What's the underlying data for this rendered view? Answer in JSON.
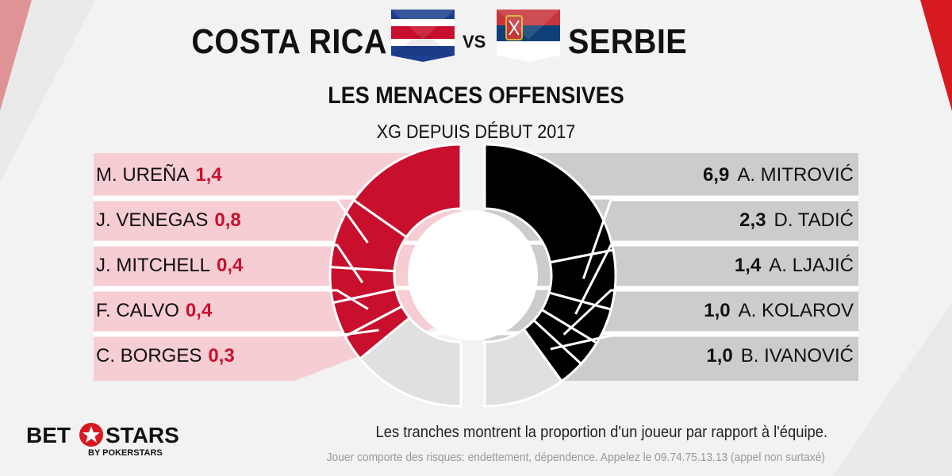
{
  "header": {
    "team_left": "COSTA RICA",
    "vs": "VS",
    "team_right": "SERBIE",
    "flag_left": "costa-rica-flag-icon",
    "flag_right": "serbia-flag-icon"
  },
  "colors": {
    "left_accent": "#c8102e",
    "left_panel": "#f5cdd3",
    "right_accent": "#000000",
    "right_panel": "#cccccc",
    "remainder": "#e0e0e0"
  },
  "chart_data": {
    "type": "donut",
    "title": "LES MENACES OFFENSIVES",
    "subtitle": "XG DEPUIS DÉBUT 2017",
    "series": [
      {
        "name": "COSTA RICA",
        "players": [
          "M. UREÑA",
          "J. VENEGAS",
          "J. MITCHELL",
          "F. CALVO",
          "C. BORGES"
        ],
        "values": [
          "1,4",
          "0,8",
          "0,4",
          "0,4",
          "0,3"
        ],
        "numeric": [
          1.4,
          0.8,
          0.4,
          0.4,
          0.3
        ],
        "shown_fraction": 0.72
      },
      {
        "name": "SERBIE",
        "players": [
          "A. MITROVIĆ",
          "D. TADIĆ",
          "A. LJAJIĆ",
          "A. KOLAROV",
          "B. IVANOVIĆ"
        ],
        "values": [
          "6,9",
          "2,3",
          "1,4",
          "1,0",
          "1,0"
        ],
        "numeric": [
          6.9,
          2.3,
          1.4,
          1.0,
          1.0
        ],
        "shown_fraction": 0.8
      }
    ]
  },
  "footer": {
    "note": "Les tranches montrent la proportion d'un joueur par rapport à l'équipe.",
    "disclaimer": "Jouer comporte des risques: endettement, dépendence. Appelez le 09.74.75.13.13 (appel non surtaxé)",
    "logo_bet": "BET",
    "logo_stars": "STARS",
    "logo_sub": "BY POKERSTARS"
  }
}
